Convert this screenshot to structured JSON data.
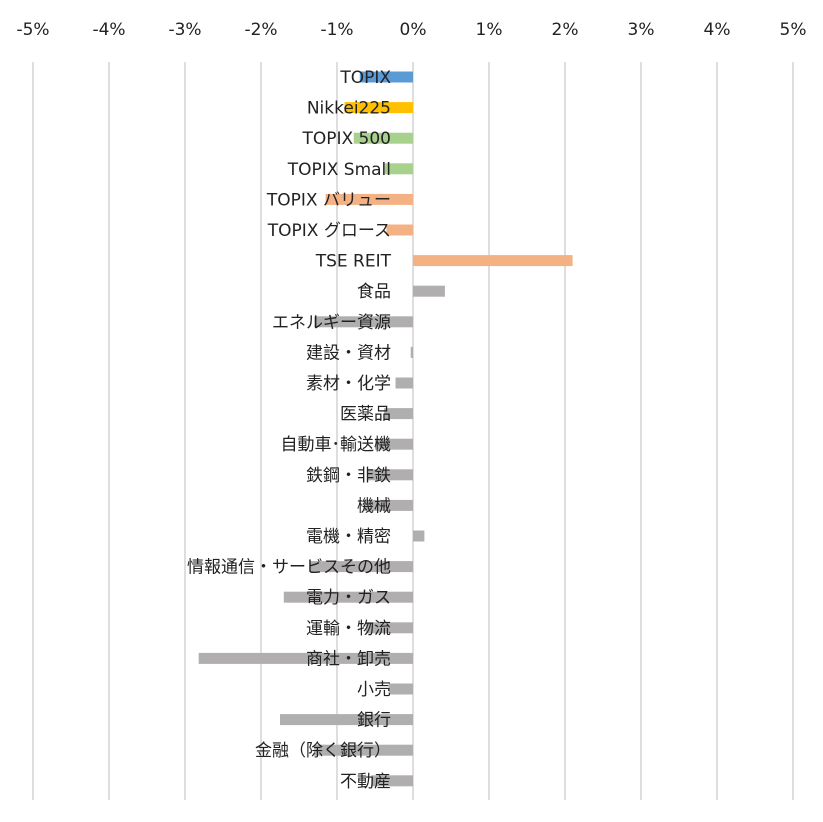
{
  "chart_data": {
    "type": "bar",
    "orientation": "horizontal",
    "xlim": [
      -5,
      5
    ],
    "ticks": [
      "-5%",
      "-4%",
      "-3%",
      "-2%",
      "-1%",
      "0%",
      "1%",
      "2%",
      "3%",
      "4%",
      "5%"
    ],
    "tick_values": [
      -5,
      -4,
      -3,
      -2,
      -1,
      0,
      1,
      2,
      3,
      4,
      5
    ],
    "axis_position": "top",
    "grid": true,
    "legend": "none",
    "colors": {
      "blue": "#5b9bd5",
      "gold": "#ffc000",
      "green": "#a9d18e",
      "orange": "#f4b183",
      "gray": "#b0aeaf"
    },
    "categories": [
      "TOPIX",
      "Nikkei225",
      "TOPIX 500",
      "TOPIX Small",
      "TOPIX バリュー",
      "TOPIX グロース",
      "TSE REIT",
      "食品",
      "エネルギー資源",
      "建設・資材",
      "素材・化学",
      "医薬品",
      "自動車･輸送機",
      "鉄鋼・非鉄",
      "機械",
      "電機・精密",
      "情報通信・サービスその他",
      "電力・ガス",
      "運輸・物流",
      "商社・卸売",
      "小売",
      "銀行",
      "金融（除く銀行）",
      "不動産"
    ],
    "values": [
      -0.7,
      -0.9,
      -0.78,
      -0.37,
      -1.15,
      -0.35,
      2.1,
      0.42,
      -1.3,
      -0.03,
      -0.23,
      -0.38,
      -0.5,
      -0.6,
      -0.65,
      0.15,
      -1.35,
      -1.7,
      -0.62,
      -2.82,
      -0.32,
      -1.75,
      -1.3,
      -0.55
    ],
    "bar_colors": [
      "blue",
      "gold",
      "green",
      "green",
      "orange",
      "orange",
      "orange",
      "gray",
      "gray",
      "gray",
      "gray",
      "gray",
      "gray",
      "gray",
      "gray",
      "gray",
      "gray",
      "gray",
      "gray",
      "gray",
      "gray",
      "gray",
      "gray",
      "gray"
    ]
  }
}
